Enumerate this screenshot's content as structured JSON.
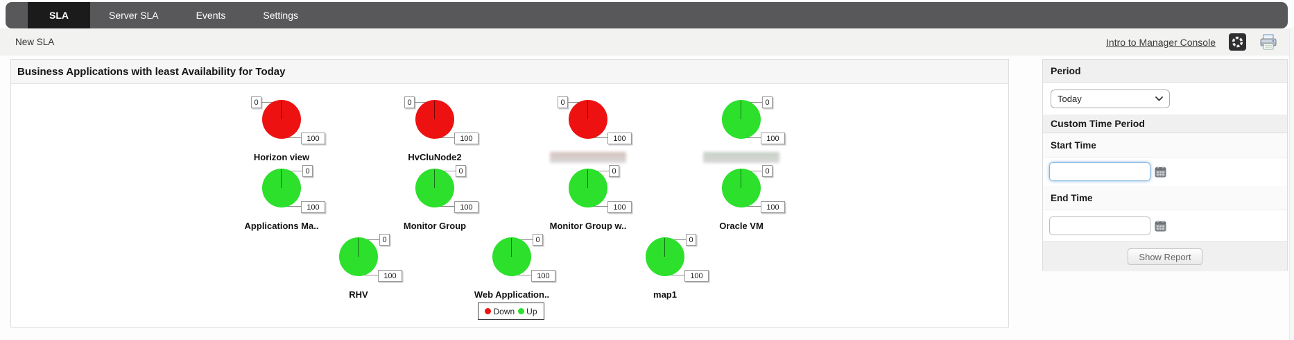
{
  "nav": {
    "tabs": [
      {
        "label": "SLA",
        "active": true
      },
      {
        "label": "Server SLA",
        "active": false
      },
      {
        "label": "Events",
        "active": false
      },
      {
        "label": "Settings",
        "active": false
      }
    ]
  },
  "breadcrumb": {
    "page_title": "New SLA",
    "manager_console_link": "Intro to Manager Console"
  },
  "panel_title": "Business Applications with least Availability for Today",
  "chart_data": {
    "type": "pie",
    "title": "Business Applications with least Availability for Today",
    "layout_grid": [
      4,
      4,
      3
    ],
    "axis_labels": [
      "0",
      "100"
    ],
    "gauges": [
      {
        "name": "Horizon view",
        "status": "Down",
        "availability_pct": 0,
        "color": "#ee1111",
        "zero_label_side": "left",
        "redacted_name": false
      },
      {
        "name": "HvCluNode2",
        "status": "Down",
        "availability_pct": 0,
        "color": "#ee1111",
        "zero_label_side": "left",
        "redacted_name": false
      },
      {
        "name": "",
        "status": "Down",
        "availability_pct": 0,
        "color": "#ee1111",
        "zero_label_side": "left",
        "redacted_name": true
      },
      {
        "name": "",
        "status": "Up",
        "availability_pct": 100,
        "color": "#2ce02c",
        "zero_label_side": "right",
        "redacted_name": true
      },
      {
        "name": "Applications Ma..",
        "status": "Up",
        "availability_pct": 100,
        "color": "#2ce02c",
        "zero_label_side": "right",
        "redacted_name": false
      },
      {
        "name": "Monitor Group",
        "status": "Up",
        "availability_pct": 100,
        "color": "#2ce02c",
        "zero_label_side": "right",
        "redacted_name": false
      },
      {
        "name": "Monitor Group w..",
        "status": "Up",
        "availability_pct": 100,
        "color": "#2ce02c",
        "zero_label_side": "right",
        "redacted_name": false
      },
      {
        "name": "Oracle VM",
        "status": "Up",
        "availability_pct": 100,
        "color": "#2ce02c",
        "zero_label_side": "right",
        "redacted_name": false
      },
      {
        "name": "RHV",
        "status": "Up",
        "availability_pct": 100,
        "color": "#2ce02c",
        "zero_label_side": "right",
        "redacted_name": false
      },
      {
        "name": "Web Application..",
        "status": "Up",
        "availability_pct": 100,
        "color": "#2ce02c",
        "zero_label_side": "right",
        "redacted_name": false
      },
      {
        "name": "map1",
        "status": "Up",
        "availability_pct": 100,
        "color": "#2ce02c",
        "zero_label_side": "right",
        "redacted_name": false
      }
    ],
    "legend": [
      {
        "label": "Down",
        "color": "#ee1111"
      },
      {
        "label": "Up",
        "color": "#2ce02c"
      }
    ],
    "legend_position": "bottom-center"
  },
  "sidebar": {
    "period_header": "Period",
    "period_selected": "Today",
    "custom_header": "Custom Time Period",
    "start_time_label": "Start Time",
    "start_time_value": "",
    "end_time_label": "End Time",
    "end_time_value": "",
    "show_report_label": "Show Report"
  },
  "icons": {
    "manager_console": "aperture-gear-icon",
    "print": "printer-icon",
    "calendar": "calendar-icon",
    "select_arrow": "chevron-down-icon"
  }
}
